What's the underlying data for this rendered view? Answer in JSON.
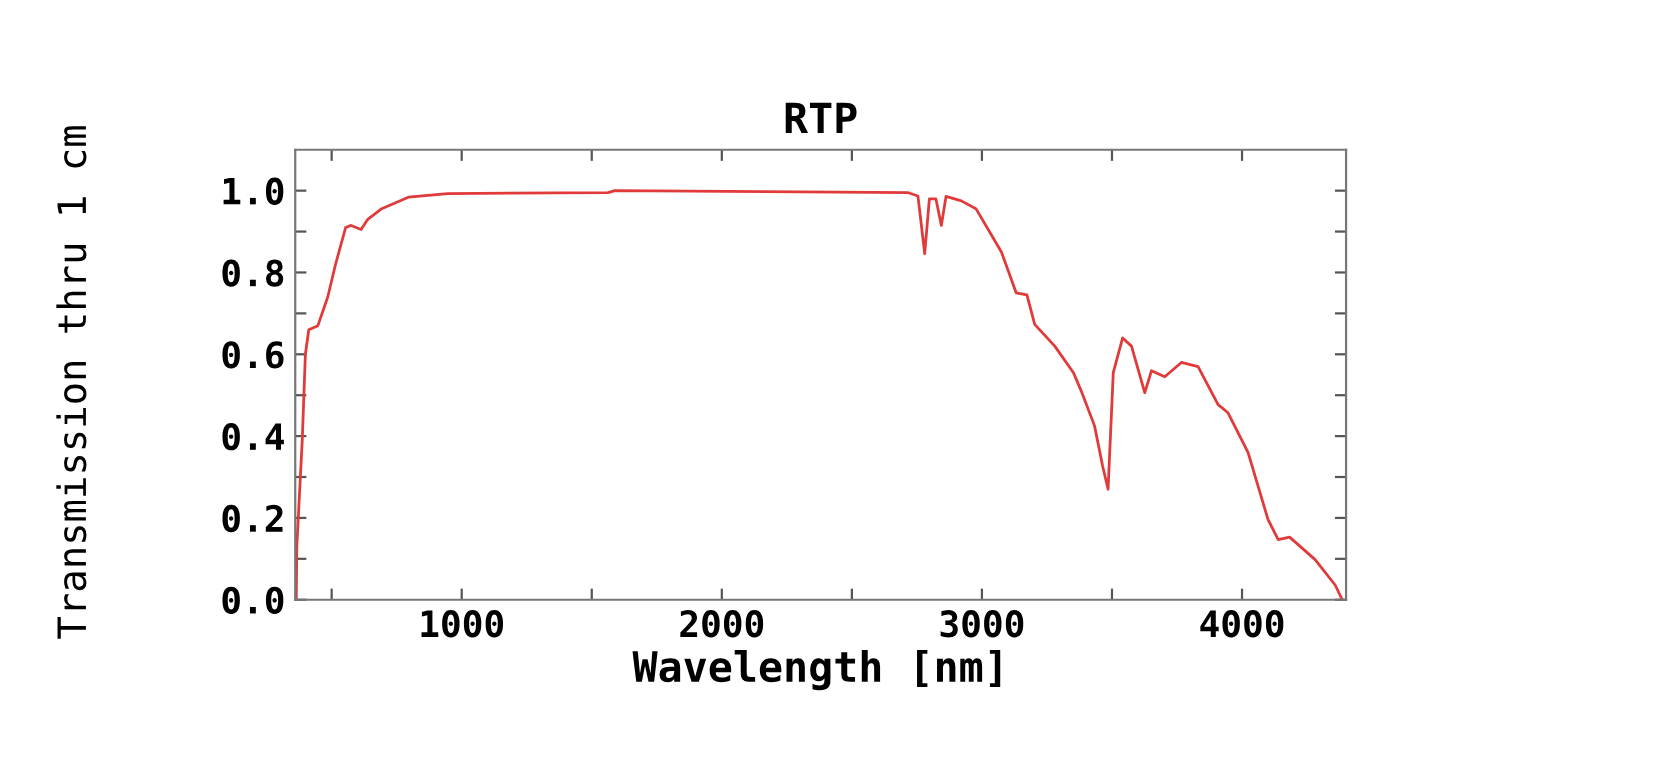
{
  "chart_data": {
    "type": "line",
    "title": "RTP",
    "xlabel": "Wavelength [nm]",
    "ylabel": "Transmission thru 1 cm",
    "xlim": [
      360,
      4400
    ],
    "ylim": [
      0,
      1.1
    ],
    "xticks": [
      {
        "value": 500,
        "label": null
      },
      1000,
      {
        "value": 1500,
        "label": null
      },
      2000,
      {
        "value": 2500,
        "label": null
      },
      3000,
      {
        "value": 3500,
        "label": null
      },
      4000
    ],
    "yticks": [
      {
        "value": 0.0,
        "label": "0.0"
      },
      {
        "value": 0.1,
        "label": null
      },
      {
        "value": 0.2,
        "label": "0.2"
      },
      {
        "value": 0.3,
        "label": null
      },
      {
        "value": 0.4,
        "label": "0.4"
      },
      {
        "value": 0.5,
        "label": null
      },
      {
        "value": 0.6,
        "label": "0.6"
      },
      {
        "value": 0.7,
        "label": null
      },
      {
        "value": 0.8,
        "label": "0.8"
      },
      {
        "value": 0.9,
        "label": null
      },
      {
        "value": 1.0,
        "label": "1.0"
      }
    ],
    "grid": false,
    "marker": "none",
    "line_style": "solid",
    "series": [
      {
        "color": "#e03a3a",
        "x": [
          364,
          366,
          387,
          399,
          412,
          447,
          485,
          515,
          554,
          575,
          613,
          639,
          690,
          795,
          946,
          1562,
          1588,
          2305,
          2717,
          2754,
          2780,
          2798,
          2823,
          2844,
          2862,
          2921,
          2977,
          3075,
          3132,
          3173,
          3203,
          3280,
          3352,
          3382,
          3433,
          3464,
          3485,
          3505,
          3541,
          3575,
          3626,
          3652,
          3703,
          3767,
          3831,
          3908,
          3946,
          4023,
          4100,
          4139,
          4183,
          4281,
          4358,
          4383
        ],
        "values": [
          0.0,
          0.13,
          0.39,
          0.6,
          0.66,
          0.67,
          0.74,
          0.82,
          0.91,
          0.915,
          0.905,
          0.93,
          0.955,
          0.984,
          0.993,
          0.995,
          1.0,
          0.997,
          0.995,
          0.987,
          0.846,
          0.98,
          0.98,
          0.915,
          0.986,
          0.975,
          0.956,
          0.85,
          0.75,
          0.745,
          0.673,
          0.62,
          0.555,
          0.51,
          0.425,
          0.327,
          0.27,
          0.555,
          0.64,
          0.62,
          0.506,
          0.56,
          0.545,
          0.58,
          0.57,
          0.477,
          0.457,
          0.36,
          0.196,
          0.147,
          0.153,
          0.098,
          0.036,
          0.003
        ]
      }
    ]
  }
}
